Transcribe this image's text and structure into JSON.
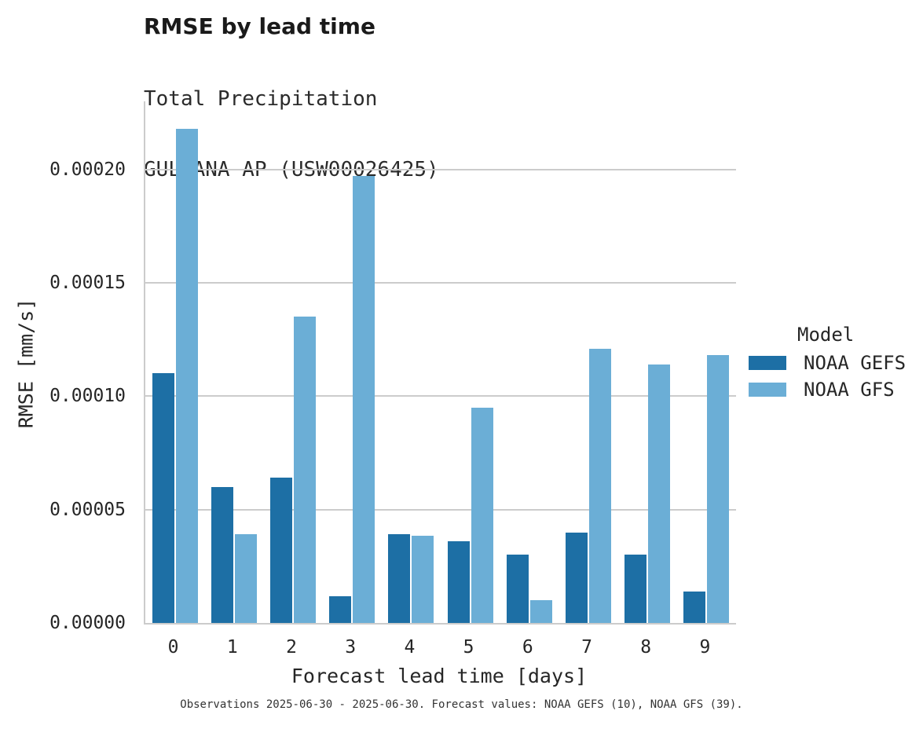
{
  "figure": {
    "caption": "Observations 2025-06-30 - 2025-06-30. Forecast values: NOAA GEFS (10), NOAA GFS (39)."
  },
  "chart_data": {
    "type": "bar",
    "title": "RMSE by lead time",
    "subtitle_lines": [
      "Total Precipitation",
      "GULKANA AP (USW00026425)"
    ],
    "categories": [
      "0",
      "1",
      "2",
      "3",
      "4",
      "5",
      "6",
      "7",
      "8",
      "9"
    ],
    "series": [
      {
        "name": "NOAA GEFS",
        "color": "#1d6fa5",
        "values": [
          0.00011,
          6e-05,
          6.4e-05,
          1.17e-05,
          3.93e-05,
          3.6e-05,
          3e-05,
          4e-05,
          3e-05,
          1.38e-05
        ]
      },
      {
        "name": "NOAA GFS",
        "color": "#6baed6",
        "values": [
          0.000218,
          3.9e-05,
          0.000135,
          0.000197,
          3.86e-05,
          9.5e-05,
          1.02e-05,
          0.000121,
          0.000114,
          0.000118
        ]
      }
    ],
    "xlabel": "Forecast lead time [days]",
    "ylabel": "RMSE [mm/s]",
    "ylim": [
      0,
      0.00023
    ],
    "ytick_values": [
      0,
      5e-05,
      0.0001,
      0.00015,
      0.0002
    ],
    "ytick_labels": [
      "0.00000",
      "0.00005",
      "0.00010",
      "0.00015",
      "0.00020"
    ],
    "legend_title": "Model",
    "legend_position": "right",
    "grid": "horizontal",
    "grid_color": "#cccccc",
    "background_color": "#ffffff"
  }
}
